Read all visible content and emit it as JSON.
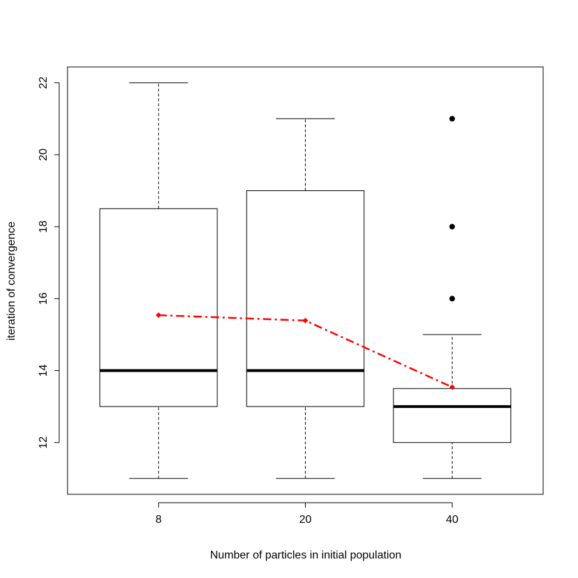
{
  "chart_data": {
    "type": "box",
    "xlabel": "Number of particles in initial population",
    "ylabel": "iteration of convergence",
    "categories": [
      "8",
      "20",
      "40"
    ],
    "boxes": [
      {
        "min": 11,
        "q1": 13,
        "median": 14,
        "q3": 18.5,
        "max": 22,
        "outliers": []
      },
      {
        "min": 11,
        "q1": 13,
        "median": 14,
        "q3": 19,
        "max": 21,
        "outliers": []
      },
      {
        "min": 11,
        "q1": 12,
        "median": 13,
        "q3": 13.5,
        "max": 15,
        "outliers": [
          16,
          18,
          21
        ]
      }
    ],
    "means": {
      "values": [
        15.54,
        15.39,
        13.54
      ],
      "color": "#ff0000"
    },
    "ylim": [
      10.56,
      22.44
    ],
    "yticks": [
      12,
      14,
      16,
      18,
      20,
      22
    ]
  }
}
